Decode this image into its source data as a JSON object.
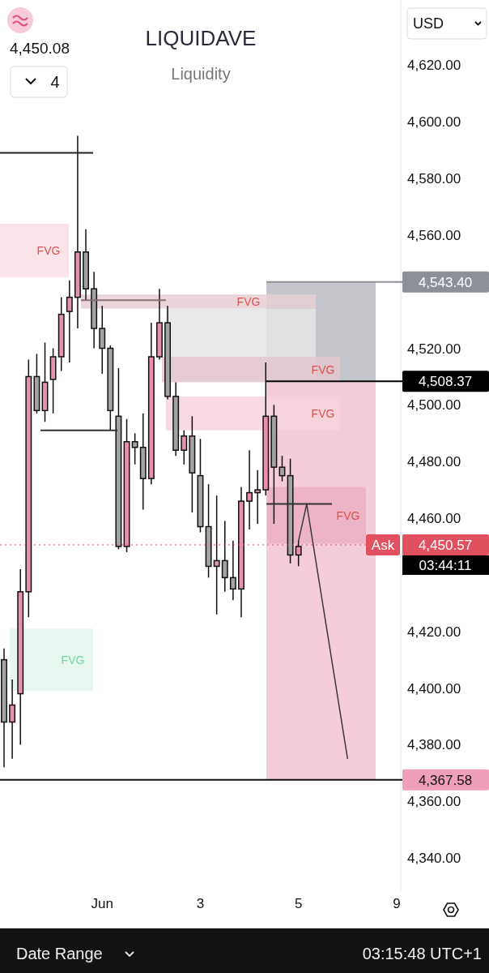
{
  "chart_data": {
    "type": "candlestick",
    "title": "LIQUIDAVE",
    "subtitle": "Liquidity",
    "categories": [
      null,
      null,
      null,
      null,
      null,
      null,
      null,
      null,
      null,
      null,
      null,
      null,
      "Jun",
      null,
      null,
      null,
      null,
      null,
      null,
      null,
      null,
      null,
      null,
      null,
      "3",
      null,
      null,
      null,
      null,
      null,
      null,
      null,
      null,
      null,
      null,
      null,
      "5",
      null,
      null,
      null,
      null,
      null,
      null,
      null,
      null,
      null,
      null,
      null,
      "9"
    ],
    "ohlc": [
      [
        4410,
        4414,
        4372,
        4388
      ],
      [
        4388,
        4403,
        4375,
        4394
      ],
      [
        4398,
        4442,
        4380,
        4434
      ],
      [
        4434,
        4516,
        4425,
        4510
      ],
      [
        4510,
        4518,
        4497,
        4498
      ],
      [
        4498,
        4522,
        4494,
        4508
      ],
      [
        4509,
        4520,
        4497,
        4517
      ],
      [
        4517,
        4538,
        4512,
        4532
      ],
      [
        4533,
        4544,
        4515,
        4538
      ],
      [
        4538,
        4595,
        4527,
        4554
      ],
      [
        4554,
        4562,
        4537,
        4541
      ],
      [
        4541,
        4547,
        4520,
        4527
      ],
      [
        4527,
        4535,
        4511,
        4520
      ],
      [
        4520,
        4521,
        4491,
        4498
      ],
      [
        4496,
        4513,
        4449,
        4450
      ],
      [
        4450,
        4495,
        4448,
        4487
      ],
      [
        4487,
        4490,
        4479,
        4485
      ],
      [
        4485,
        4497,
        4463,
        4474
      ],
      [
        4474,
        4529,
        4472,
        4517
      ],
      [
        4517,
        4541,
        4516,
        4529
      ],
      [
        4529,
        4535,
        4502,
        4503
      ],
      [
        4503,
        4508,
        4482,
        4484
      ],
      [
        4484,
        4491,
        4479,
        4489
      ],
      [
        4489,
        4496,
        4462,
        4476
      ],
      [
        4475,
        4488,
        4455,
        4457
      ],
      [
        4457,
        4472,
        4439,
        4443
      ],
      [
        4443,
        4468,
        4426,
        4445
      ],
      [
        4445,
        4459,
        4434,
        4439
      ],
      [
        4439,
        4452,
        4431,
        4435
      ],
      [
        4435,
        4471,
        4425,
        4466
      ],
      [
        4466,
        4484,
        4456,
        4469
      ],
      [
        4469,
        4477,
        4458,
        4470
      ],
      [
        4470,
        4515,
        4468,
        4496
      ],
      [
        4496,
        4500,
        4458,
        4478
      ],
      [
        4478,
        4482,
        4473,
        4475
      ],
      [
        4475,
        4481,
        4444,
        4447
      ],
      [
        4447,
        4452,
        4443,
        4450
      ],
      null,
      null,
      null,
      null,
      null,
      null,
      null,
      null,
      null,
      null,
      null,
      null
    ],
    "colors": [
      "#a3a3a3",
      "#e891ae",
      "#e891ae",
      "#e891ae",
      "#a3a3a3",
      "#e891ae",
      "#e891ae",
      "#e891ae",
      "#e891ae",
      "#e891ae",
      "#a3a3a3",
      "#a3a3a3",
      "#a3a3a3",
      "#a3a3a3",
      "#a3a3a3",
      "#e891ae",
      "#a3a3a3",
      "#a3a3a3",
      "#e891ae",
      "#e891ae",
      "#a3a3a3",
      "#a3a3a3",
      "#e891ae",
      "#a3a3a3",
      "#a3a3a3",
      "#a3a3a3",
      "#e891ae",
      "#a3a3a3",
      "#a3a3a3",
      "#e891ae",
      "#e891ae",
      "#e891ae",
      "#e891ae",
      "#a3a3a3",
      "#a3a3a3",
      "#a3a3a3",
      "#e891ae",
      null,
      null,
      null,
      null,
      null,
      null,
      null,
      null,
      null,
      null,
      null,
      null
    ],
    "series": [
      {
        "type": "line",
        "color": "#3a3a3a",
        "values": [
          null,
          null,
          null,
          null,
          null,
          null,
          null,
          null,
          null,
          null,
          null,
          null,
          null,
          null,
          null,
          null,
          null,
          null,
          null,
          null,
          null,
          null,
          null,
          null,
          null,
          null,
          null,
          null,
          null,
          null,
          null,
          null,
          null,
          null,
          null,
          null,
          4452,
          4465,
          null,
          null,
          null,
          null,
          4375,
          null,
          null,
          null,
          null,
          null,
          null
        ]
      }
    ],
    "ylim": [
      4328,
      4643
    ],
    "yticks": [
      {
        "value": 4340,
        "label": "4,340.00"
      },
      {
        "value": 4360,
        "label": "4,360.00"
      },
      {
        "value": 4380,
        "label": "4,380.00"
      },
      {
        "value": 4400,
        "label": "4,400.00"
      },
      {
        "value": 4420,
        "label": "4,420.00"
      },
      {
        "value": 4460,
        "label": "4,460.00"
      },
      {
        "value": 4480,
        "label": "4,480.00"
      },
      {
        "value": 4500,
        "label": "4,500.00"
      },
      {
        "value": 4520,
        "label": "4,520.00"
      },
      {
        "value": 4560,
        "label": "4,560.00"
      },
      {
        "value": 4580,
        "label": "4,580.00"
      },
      {
        "value": 4600,
        "label": "4,600.00"
      },
      {
        "value": 4620,
        "label": "4,620.00"
      }
    ],
    "bands": [
      {
        "axis": "y",
        "from": 4508.37,
        "to": 4543.4,
        "label": null,
        "color": "#b9bbc2"
      },
      {
        "axis": "y",
        "from": 4367.58,
        "to": 4508.37,
        "label": null,
        "color": "#f2c3d3"
      },
      {
        "axis": "y",
        "from": 4545,
        "to": 4564,
        "label": "FVG",
        "color": "#fadfe5"
      },
      {
        "axis": "y",
        "from": 4509,
        "to": 4534,
        "label": null,
        "color": "#e4e5e8"
      },
      {
        "axis": "y",
        "from": 4534,
        "to": 4539,
        "label": "FVG",
        "color": "#e6cfd3"
      },
      {
        "axis": "y",
        "from": 4508,
        "to": 4517,
        "label": "FVG",
        "color": "#e2c6cc"
      },
      {
        "axis": "y",
        "from": 4491,
        "to": 4503,
        "label": "FVG",
        "color": "#f6d3dd"
      },
      {
        "axis": "y",
        "from": 4451,
        "to": 4471,
        "label": "FVG",
        "color": "#ebaec3"
      },
      {
        "axis": "y",
        "from": 4399,
        "to": 4421,
        "label": "FVG",
        "color": "#e3f6ec"
      }
    ],
    "ref_lines": [
      {
        "axis": "y",
        "value": 4589,
        "label": null,
        "color": "#222222"
      },
      {
        "axis": "y",
        "value": 4491,
        "label": null,
        "color": "#333333"
      },
      {
        "axis": "y",
        "value": 4537,
        "label": null,
        "color": "#8a6f75"
      },
      {
        "axis": "y",
        "value": 4465,
        "label": null,
        "color": "#333333"
      },
      {
        "axis": "y",
        "value": 4543.4,
        "label": "4,543.40",
        "color": "#8e9099"
      },
      {
        "axis": "y",
        "value": 4508.37,
        "label": "4,508.37",
        "color": "#000000"
      },
      {
        "axis": "y",
        "value": 4450.57,
        "label": "4,450.57",
        "color": "#e0505f",
        "line_style": "dotted"
      },
      {
        "axis": "y",
        "value": 4367.58,
        "label": "4,367.58",
        "color": "#111111"
      }
    ],
    "annotations": [
      "4,450.08",
      "4",
      "USD",
      "Ask",
      "03:44:11",
      "Date Range",
      "03:15:48 UTC+1"
    ]
  }
}
